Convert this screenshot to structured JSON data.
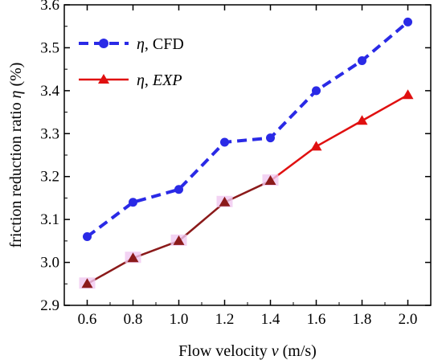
{
  "chart_data": {
    "type": "line",
    "x": [
      0.6,
      0.8,
      1.0,
      1.2,
      1.4,
      1.6,
      1.8,
      2.0
    ],
    "x_ticks": [
      "0.6",
      "0.8",
      "1.0",
      "1.2",
      "1.4",
      "1.6",
      "1.8",
      "2.0"
    ],
    "y_ticks": [
      "2.9",
      "3.0",
      "3.1",
      "3.2",
      "3.3",
      "3.4",
      "3.5",
      "3.6"
    ],
    "xlim": [
      0.5,
      2.1
    ],
    "ylim": [
      2.9,
      3.6
    ],
    "xlabel": {
      "pre": "Flow velocity ",
      "var": "v",
      "post": " (m/s)"
    },
    "ylabel": {
      "pre": "friction reduction ratio ",
      "var": "η",
      "post": " (%)"
    },
    "grid": false,
    "legend_position": "top-left",
    "series": [
      {
        "name": {
          "sym": "η",
          "sep": ", ",
          "tag": "CFD"
        },
        "values": [
          3.06,
          3.14,
          3.17,
          3.28,
          3.29,
          3.4,
          3.47,
          3.56
        ],
        "color": "#2a2ae6",
        "line_style": "dashed",
        "marker": "circle"
      },
      {
        "name": {
          "sym": "η",
          "sep": ", ",
          "tag": "EXP"
        },
        "values": [
          2.95,
          3.01,
          3.05,
          3.14,
          3.19,
          3.27,
          3.33,
          3.39
        ],
        "color": "#e01010",
        "line_style": "solid",
        "marker": "triangle",
        "low_segment_color": "#8b1a1a",
        "marker_halo_color": "#f0c8f0"
      }
    ]
  }
}
